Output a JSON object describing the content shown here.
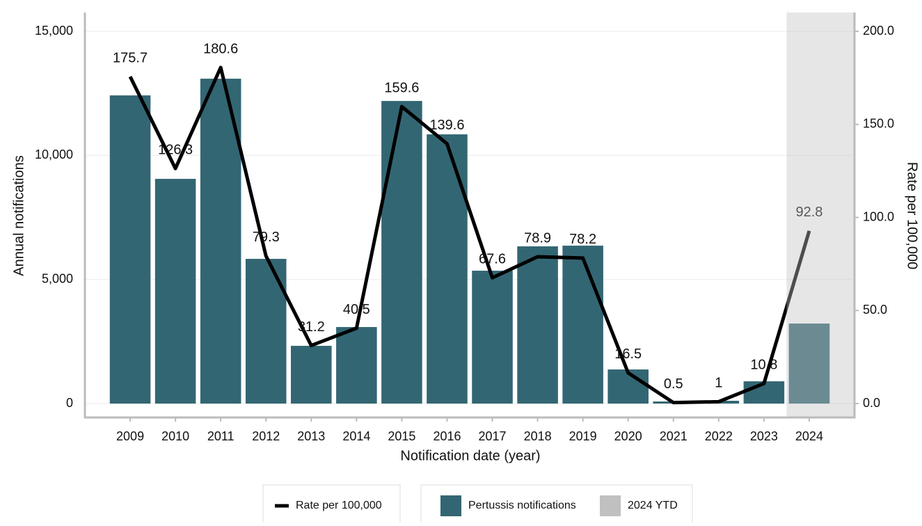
{
  "chart_data": {
    "type": "bar_line",
    "x_label": "Notification date (year)",
    "y_label": "Annual notifications",
    "y2_label": "Rate per 100,000",
    "categories": [
      "2009",
      "2010",
      "2011",
      "2012",
      "2013",
      "2014",
      "2015",
      "2016",
      "2017",
      "2018",
      "2019",
      "2020",
      "2021",
      "2022",
      "2023",
      "2024"
    ],
    "series": [
      {
        "name": "Pertussis notifications",
        "type": "bar",
        "color": "#336673",
        "values": [
          12420,
          9056,
          13093,
          5832,
          2327,
          3084,
          12196,
          10850,
          5355,
          6336,
          6364,
          1374,
          84,
          112,
          897,
          3224
        ]
      },
      {
        "name": "Rate per 100,000",
        "type": "line",
        "axis": "y2",
        "color": "#000000",
        "values": [
          175.7,
          126.3,
          180.6,
          79.3,
          31.2,
          40.5,
          159.6,
          139.6,
          67.6,
          78.9,
          78.2,
          16.5,
          0.5,
          1,
          10.8,
          92.8
        ]
      }
    ],
    "shade": {
      "name": "2024 YTD",
      "color": "#c0c0c0",
      "category": "2024"
    },
    "ylim": [
      -560,
      15760
    ],
    "yticks": [
      0,
      {
        "value": 5000,
        "label": "5,000"
      },
      {
        "value": 10000,
        "label": "10,000"
      },
      {
        "value": 15000,
        "label": "15,000"
      }
    ],
    "y2lim": [
      -7.47,
      210.13
    ],
    "y2ticks": [
      {
        "value": 0,
        "label": "0.0"
      },
      {
        "value": 50,
        "label": "50.0"
      },
      {
        "value": 100,
        "label": "100.0"
      },
      {
        "value": 150,
        "label": "150.0"
      },
      {
        "value": 200,
        "label": "200.0"
      }
    ],
    "grid": true
  }
}
